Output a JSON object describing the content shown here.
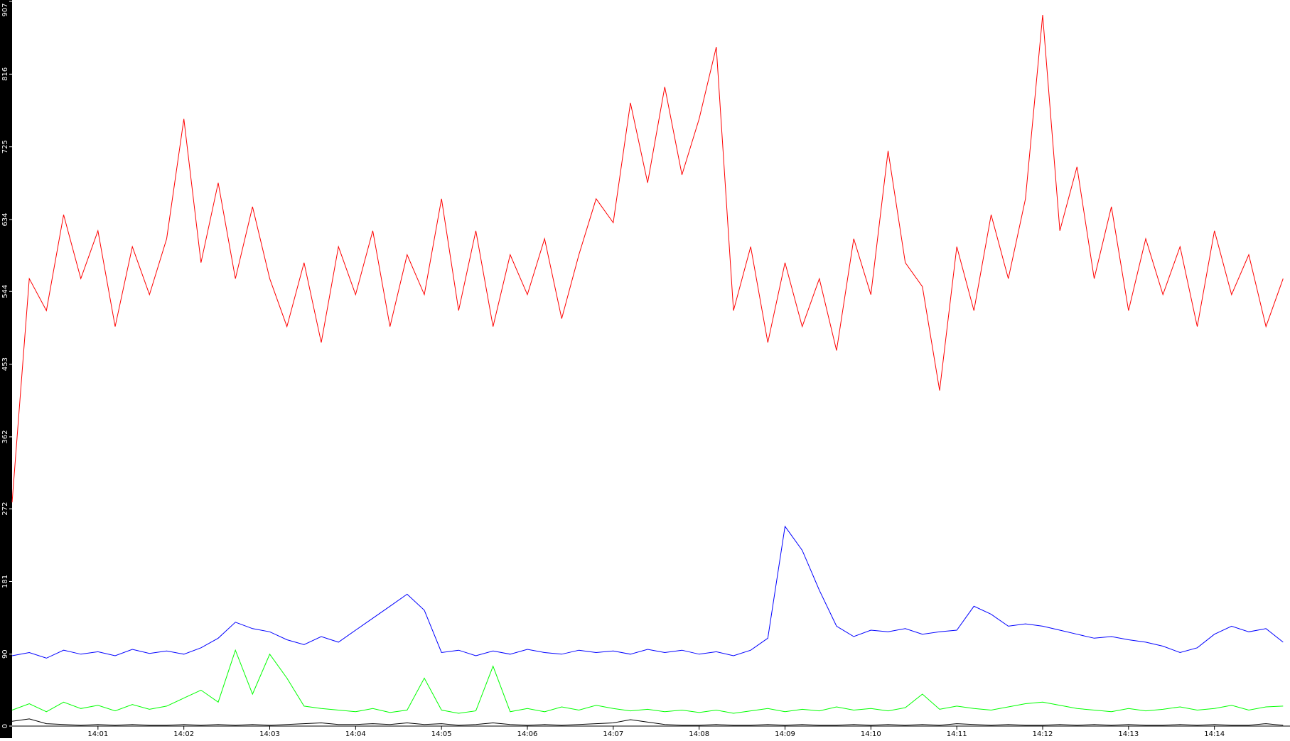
{
  "chart_data": {
    "type": "line",
    "x": [
      0,
      0.2,
      0.4,
      0.6,
      0.8,
      1,
      1.2,
      1.4,
      1.6,
      1.8,
      2,
      2.2,
      2.4,
      2.6,
      2.8,
      3,
      3.2,
      3.4,
      3.6,
      3.8,
      4,
      4.2,
      4.4,
      4.6,
      4.8,
      5,
      5.2,
      5.4,
      5.6,
      5.8,
      6,
      6.2,
      6.4,
      6.6,
      6.8,
      7,
      7.2,
      7.4,
      7.6,
      7.8,
      8,
      8.2,
      8.4,
      8.6,
      8.8,
      9,
      9.2,
      9.4,
      9.6,
      9.8,
      10,
      10.2,
      10.4,
      10.6,
      10.8,
      11,
      11.2,
      11.4,
      11.6,
      11.8,
      12,
      12.2,
      12.4,
      12.6,
      12.8,
      13,
      13.2,
      13.4,
      13.6,
      13.8,
      14,
      14.2,
      14.4,
      14.6,
      14.8
    ],
    "series": [
      {
        "color": "#ff0000",
        "values": [
          280,
          560,
          520,
          640,
          560,
          620,
          500,
          600,
          540,
          610,
          760,
          580,
          680,
          560,
          650,
          560,
          500,
          580,
          480,
          600,
          540,
          620,
          500,
          590,
          540,
          660,
          520,
          620,
          500,
          590,
          540,
          610,
          510,
          590,
          660,
          630,
          780,
          680,
          800,
          690,
          760,
          850,
          520,
          600,
          480,
          580,
          500,
          560,
          470,
          610,
          540,
          720,
          580,
          550,
          420,
          600,
          520,
          640,
          560,
          660,
          890,
          620,
          700,
          560,
          650,
          520,
          610,
          540,
          600,
          500,
          620,
          540,
          590,
          500,
          560
        ]
      },
      {
        "color": "#0000ff",
        "values": [
          88,
          92,
          85,
          95,
          90,
          93,
          88,
          96,
          91,
          94,
          90,
          98,
          110,
          130,
          122,
          118,
          108,
          102,
          112,
          105,
          120,
          135,
          150,
          165,
          145,
          92,
          95,
          88,
          94,
          90,
          96,
          92,
          90,
          95,
          92,
          94,
          90,
          96,
          92,
          95,
          90,
          93,
          88,
          95,
          110,
          250,
          220,
          170,
          125,
          112,
          120,
          118,
          122,
          115,
          118,
          120,
          150,
          140,
          125,
          128,
          125,
          120,
          115,
          110,
          112,
          108,
          105,
          100,
          92,
          98,
          115,
          125,
          118,
          122,
          105
        ]
      },
      {
        "color": "#00ff00",
        "values": [
          20,
          28,
          18,
          30,
          22,
          26,
          19,
          27,
          21,
          25,
          35,
          45,
          30,
          95,
          40,
          90,
          60,
          25,
          22,
          20,
          18,
          22,
          17,
          20,
          60,
          20,
          16,
          19,
          75,
          18,
          22,
          18,
          24,
          20,
          26,
          22,
          19,
          21,
          18,
          20,
          17,
          20,
          16,
          19,
          22,
          18,
          21,
          19,
          24,
          20,
          22,
          19,
          23,
          40,
          21,
          25,
          22,
          20,
          24,
          28,
          30,
          26,
          22,
          20,
          18,
          22,
          19,
          21,
          24,
          20,
          22,
          26,
          20,
          24,
          25
        ]
      },
      {
        "color": "#000000",
        "values": [
          6,
          9,
          3,
          2,
          1,
          2,
          1,
          2,
          1,
          1,
          2,
          1,
          2,
          1,
          2,
          1,
          2,
          3,
          4,
          2,
          2,
          3,
          2,
          4,
          2,
          3,
          1,
          2,
          4,
          2,
          1,
          2,
          1,
          2,
          3,
          4,
          8,
          5,
          2,
          1,
          1,
          2,
          1,
          1,
          2,
          1,
          2,
          1,
          1,
          2,
          1,
          2,
          1,
          2,
          1,
          3,
          2,
          1,
          2,
          1,
          1,
          2,
          1,
          2,
          1,
          2,
          1,
          1,
          2,
          1,
          2,
          1,
          1,
          3,
          1
        ]
      }
    ],
    "xlim": [
      0,
      14.88
    ],
    "xticks": [
      {
        "value": 1,
        "label": "14:01"
      },
      {
        "value": 2,
        "label": "14:02"
      },
      {
        "value": 3,
        "label": "14:03"
      },
      {
        "value": 4,
        "label": "14:04"
      },
      {
        "value": 5,
        "label": "14:05"
      },
      {
        "value": 6,
        "label": "14:06"
      },
      {
        "value": 7,
        "label": "14:07"
      },
      {
        "value": 8,
        "label": "14:08"
      },
      {
        "value": 9,
        "label": "14:09"
      },
      {
        "value": 10,
        "label": "14:10"
      },
      {
        "value": 11,
        "label": "14:11"
      },
      {
        "value": 12,
        "label": "14:12"
      },
      {
        "value": 13,
        "label": "14:13"
      },
      {
        "value": 14,
        "label": "14:14"
      }
    ],
    "ylim": [
      0,
      907
    ],
    "yticks": [
      0,
      90,
      181,
      272,
      362,
      453,
      544,
      634,
      725,
      816,
      907
    ]
  }
}
